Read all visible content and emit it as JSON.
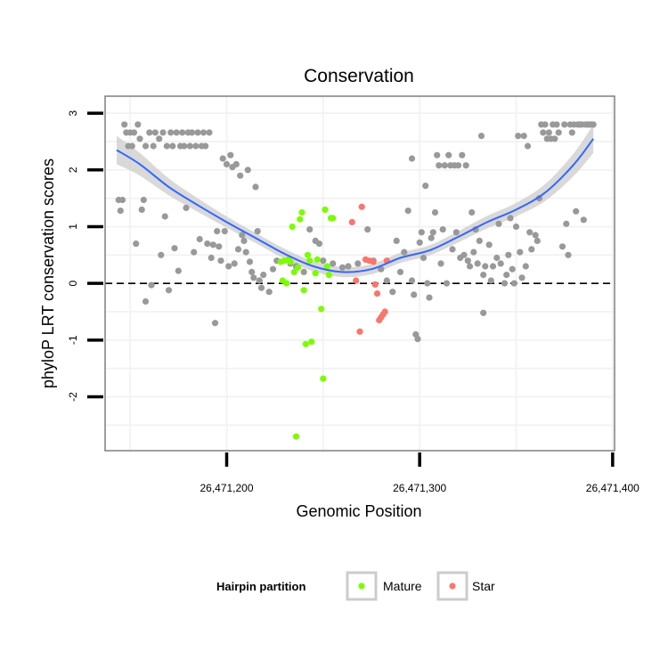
{
  "chart_data": {
    "type": "scatter",
    "title": "Conservation",
    "xlabel": "Genomic Position",
    "ylabel": "phyloP LRT conservation scores",
    "xlim": [
      26471137,
      26471401
    ],
    "ylim": [
      -2.95,
      3.3
    ],
    "x_ticks": [
      {
        "value": 26471200,
        "label": "26,471,200"
      },
      {
        "value": 26471300,
        "label": "26,471,300"
      },
      {
        "value": 26471400,
        "label": "26,471,400"
      }
    ],
    "y_ticks": [
      {
        "value": -2,
        "label": "-2"
      },
      {
        "value": -1,
        "label": "-1"
      },
      {
        "value": 0,
        "label": "0"
      },
      {
        "value": 1,
        "label": "1"
      },
      {
        "value": 2,
        "label": "2"
      },
      {
        "value": 3,
        "label": "3"
      }
    ],
    "reference_line": {
      "y": 0,
      "style": "dashed"
    },
    "legend": {
      "title": "Hairpin partition",
      "position": "bottom",
      "entries": [
        {
          "label": "Mature",
          "color": "#7cfc00"
        },
        {
          "label": "Star",
          "color": "#f8766d"
        }
      ]
    },
    "colors": {
      "other": "#999999",
      "Mature": "#7cfc00",
      "Star": "#f8766d",
      "smooth": "#3366ff",
      "band": "#cccccc"
    },
    "series": [
      {
        "name": "Other",
        "points": [
          [
            26471144,
            1.47
          ],
          [
            26471145,
            1.28
          ],
          [
            26471146,
            1.47
          ],
          [
            26471147,
            2.8
          ],
          [
            26471148,
            2.66
          ],
          [
            26471149,
            2.42
          ],
          [
            26471150,
            2.66
          ],
          [
            26471151,
            2.42
          ],
          [
            26471152,
            2.66
          ],
          [
            26471153,
            0.7
          ],
          [
            26471154,
            2.8
          ],
          [
            26471155,
            2.55
          ],
          [
            26471156,
            1.3
          ],
          [
            26471157,
            1.47
          ],
          [
            26471158,
            2.42
          ],
          [
            26471158,
            -0.32
          ],
          [
            26471160,
            2.66
          ],
          [
            26471161,
            -0.03
          ],
          [
            26471162,
            2.42
          ],
          [
            26471163,
            2.66
          ],
          [
            26471165,
            2.55
          ],
          [
            26471166,
            0.5
          ],
          [
            26471167,
            2.66
          ],
          [
            26471168,
            1.18
          ],
          [
            26471169,
            2.42
          ],
          [
            26471170,
            -0.12
          ],
          [
            26471171,
            2.66
          ],
          [
            26471172,
            2.42
          ],
          [
            26471173,
            0.62
          ],
          [
            26471174,
            2.66
          ],
          [
            26471175,
            0.22
          ],
          [
            26471176,
            2.42
          ],
          [
            26471177,
            2.66
          ],
          [
            26471178,
            2.42
          ],
          [
            26471179,
            1.33
          ],
          [
            26471180,
            2.66
          ],
          [
            26471181,
            2.42
          ],
          [
            26471182,
            2.66
          ],
          [
            26471183,
            0.55
          ],
          [
            26471184,
            2.42
          ],
          [
            26471185,
            2.66
          ],
          [
            26471186,
            0.78
          ],
          [
            26471187,
            2.42
          ],
          [
            26471188,
            2.66
          ],
          [
            26471189,
            2.42
          ],
          [
            26471190,
            0.7
          ],
          [
            26471191,
            2.66
          ],
          [
            26471192,
            0.45
          ],
          [
            26471193,
            0.68
          ],
          [
            26471194,
            -0.7
          ],
          [
            26471195,
            0.92
          ],
          [
            26471196,
            0.65
          ],
          [
            26471197,
            0.4
          ],
          [
            26471198,
            2.2
          ],
          [
            26471199,
            0.92
          ],
          [
            26471200,
            2.1
          ],
          [
            26471201,
            0.3
          ],
          [
            26471202,
            2.26
          ],
          [
            26471203,
            2.05
          ],
          [
            26471204,
            0.35
          ],
          [
            26471205,
            2.1
          ],
          [
            26471206,
            0.6
          ],
          [
            26471207,
            1.9
          ],
          [
            26471208,
            0.85
          ],
          [
            26471209,
            0.75
          ],
          [
            26471210,
            0.55
          ],
          [
            26471211,
            2.0
          ],
          [
            26471212,
            0.38
          ],
          [
            26471213,
            0.2
          ],
          [
            26471214,
            0.1
          ],
          [
            26471215,
            1.7
          ],
          [
            26471216,
            0.92
          ],
          [
            26471217,
            0.05
          ],
          [
            26471218,
            -0.08
          ],
          [
            26471219,
            0.15
          ],
          [
            26471222,
            -0.15
          ],
          [
            26471224,
            0.25
          ],
          [
            26471226,
            0.4
          ],
          [
            26471233,
            0.35
          ],
          [
            26471236,
            0.3
          ],
          [
            26471240,
            0.2
          ],
          [
            26471243,
            0.95
          ],
          [
            26471246,
            0.75
          ],
          [
            26471248,
            0.7
          ],
          [
            26471250,
            0.4
          ],
          [
            26471255,
            0.35
          ],
          [
            26471260,
            0.28
          ],
          [
            26471263,
            0.3
          ],
          [
            26471268,
            0.35
          ],
          [
            26471273,
            0.95
          ],
          [
            26471276,
            0.4
          ],
          [
            26471280,
            0.25
          ],
          [
            26471283,
            0.05
          ],
          [
            26471286,
            -0.15
          ],
          [
            26471288,
            0.75
          ],
          [
            26471290,
            0.2
          ],
          [
            26471292,
            0.55
          ],
          [
            26471294,
            1.28
          ],
          [
            26471296,
            0.05
          ],
          [
            26471296,
            2.2
          ],
          [
            26471297,
            -0.2
          ],
          [
            26471298,
            -0.9
          ],
          [
            26471299,
            -0.98
          ],
          [
            26471300,
            0.72
          ],
          [
            26471301,
            0.9
          ],
          [
            26471302,
            0.45
          ],
          [
            26471303,
            1.72
          ],
          [
            26471304,
            0.0
          ],
          [
            26471305,
            -0.25
          ],
          [
            26471306,
            0.8
          ],
          [
            26471307,
            0.9
          ],
          [
            26471308,
            1.25
          ],
          [
            26471309,
            2.26
          ],
          [
            26471310,
            2.08
          ],
          [
            26471311,
            0.35
          ],
          [
            26471312,
            0.95
          ],
          [
            26471313,
            2.08
          ],
          [
            26471314,
            0.0
          ],
          [
            26471315,
            2.26
          ],
          [
            26471316,
            2.08
          ],
          [
            26471317,
            0.6
          ],
          [
            26471318,
            2.08
          ],
          [
            26471319,
            0.9
          ],
          [
            26471320,
            2.08
          ],
          [
            26471321,
            0.45
          ],
          [
            26471322,
            2.26
          ],
          [
            26471323,
            0.5
          ],
          [
            26471324,
            2.08
          ],
          [
            26471325,
            0.4
          ],
          [
            26471326,
            0.3
          ],
          [
            26471327,
            1.25
          ],
          [
            26471328,
            0.55
          ],
          [
            26471329,
            0.95
          ],
          [
            26471330,
            0.35
          ],
          [
            26471331,
            0.75
          ],
          [
            26471332,
            2.6
          ],
          [
            26471333,
            0.15
          ],
          [
            26471333,
            -0.52
          ],
          [
            26471334,
            0.3
          ],
          [
            26471336,
            0.68
          ],
          [
            26471337,
            0.05
          ],
          [
            26471338,
            0.3
          ],
          [
            26471340,
            0.45
          ],
          [
            26471341,
            1.05
          ],
          [
            26471342,
            0.35
          ],
          [
            26471344,
            0.0
          ],
          [
            26471345,
            0.15
          ],
          [
            26471346,
            0.5
          ],
          [
            26471347,
            1.15
          ],
          [
            26471348,
            0.25
          ],
          [
            26471349,
            0.0
          ],
          [
            26471350,
            1.0
          ],
          [
            26471351,
            2.6
          ],
          [
            26471352,
            0.55
          ],
          [
            26471353,
            0.1
          ],
          [
            26471354,
            2.6
          ],
          [
            26471355,
            0.3
          ],
          [
            26471356,
            2.42
          ],
          [
            26471357,
            0.9
          ],
          [
            26471358,
            0.6
          ],
          [
            26471360,
            0.85
          ],
          [
            26471361,
            0.75
          ],
          [
            26471362,
            1.5
          ],
          [
            26471363,
            2.8
          ],
          [
            26471364,
            2.66
          ],
          [
            26471365,
            2.8
          ],
          [
            26471366,
            2.55
          ],
          [
            26471367,
            2.66
          ],
          [
            26471368,
            2.55
          ],
          [
            26471369,
            2.8
          ],
          [
            26471370,
            2.55
          ],
          [
            26471371,
            2.8
          ],
          [
            26471372,
            2.66
          ],
          [
            26471374,
            0.65
          ],
          [
            26471375,
            2.8
          ],
          [
            26471376,
            1.05
          ],
          [
            26471377,
            0.5
          ],
          [
            26471378,
            2.8
          ],
          [
            26471379,
            2.66
          ],
          [
            26471380,
            2.8
          ],
          [
            26471381,
            1.27
          ],
          [
            26471382,
            2.8
          ],
          [
            26471383,
            2.8
          ],
          [
            26471384,
            2.8
          ],
          [
            26471385,
            1.12
          ],
          [
            26471386,
            2.8
          ],
          [
            26471387,
            2.8
          ],
          [
            26471388,
            2.8
          ],
          [
            26471389,
            2.8
          ],
          [
            26471390,
            2.8
          ]
        ]
      },
      {
        "name": "Mature",
        "points": [
          [
            26471228,
            0.38
          ],
          [
            26471229,
            0.05
          ],
          [
            26471230,
            0.4
          ],
          [
            26471231,
            0.0
          ],
          [
            26471232,
            0.42
          ],
          [
            26471233,
            0.38
          ],
          [
            26471234,
            1.0
          ],
          [
            26471235,
            0.2
          ],
          [
            26471236,
            -2.7
          ],
          [
            26471237,
            0.28
          ],
          [
            26471238,
            1.13
          ],
          [
            26471239,
            1.25
          ],
          [
            26471240,
            -0.12
          ],
          [
            26471241,
            -1.07
          ],
          [
            26471242,
            0.5
          ],
          [
            26471243,
            0.4
          ],
          [
            26471244,
            -1.03
          ],
          [
            26471246,
            0.18
          ],
          [
            26471247,
            0.42
          ],
          [
            26471249,
            -0.45
          ],
          [
            26471250,
            -1.68
          ],
          [
            26471251,
            1.3
          ],
          [
            26471252,
            0.3
          ],
          [
            26471253,
            0.15
          ],
          [
            26471254,
            1.15
          ],
          [
            26471255,
            1.15
          ]
        ]
      },
      {
        "name": "Star",
        "points": [
          [
            26471265,
            1.08
          ],
          [
            26471267,
            0.05
          ],
          [
            26471269,
            -0.85
          ],
          [
            26471270,
            1.35
          ],
          [
            26471272,
            0.42
          ],
          [
            26471274,
            0.4
          ],
          [
            26471276,
            0.38
          ],
          [
            26471277,
            -0.02
          ],
          [
            26471278,
            -0.18
          ],
          [
            26471279,
            -0.65
          ],
          [
            26471280,
            -0.6
          ],
          [
            26471281,
            -0.55
          ],
          [
            26471282,
            -0.5
          ],
          [
            26471283,
            0.4
          ]
        ]
      }
    ],
    "smooth_line": {
      "x": [
        26471143,
        26471155,
        26471170,
        26471185,
        26471200,
        26471215,
        26471230,
        26471245,
        26471260,
        26471275,
        26471290,
        26471305,
        26471320,
        26471335,
        26471350,
        26471365,
        26471380,
        26471390
      ],
      "y": [
        2.35,
        2.1,
        1.7,
        1.38,
        1.08,
        0.8,
        0.52,
        0.3,
        0.2,
        0.25,
        0.45,
        0.58,
        0.82,
        1.08,
        1.3,
        1.6,
        2.1,
        2.55
      ],
      "se": [
        0.25,
        0.2,
        0.15,
        0.12,
        0.1,
        0.09,
        0.09,
        0.09,
        0.09,
        0.09,
        0.09,
        0.09,
        0.1,
        0.11,
        0.12,
        0.15,
        0.2,
        0.25
      ]
    }
  }
}
